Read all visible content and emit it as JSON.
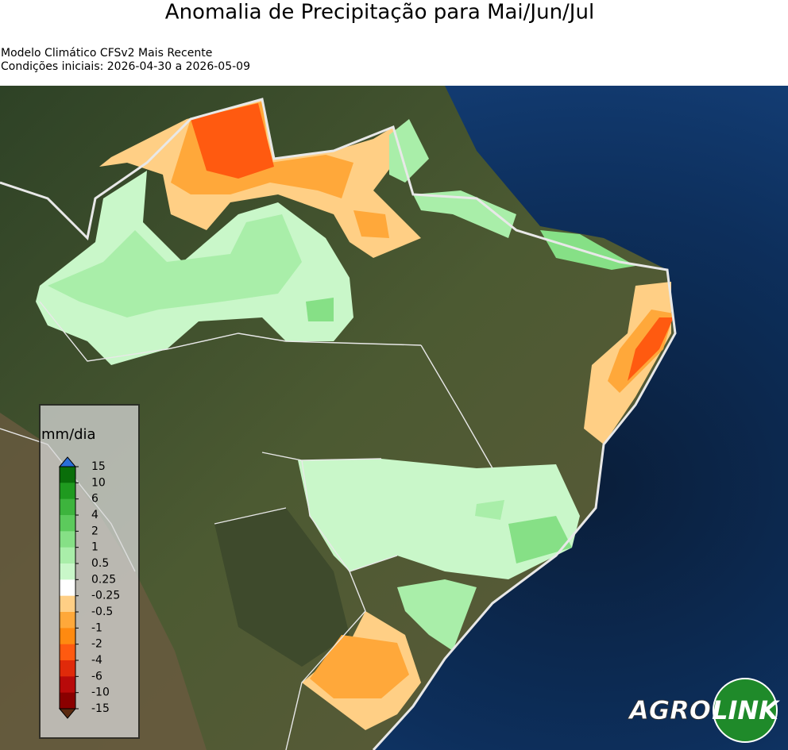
{
  "header": {
    "title": "Anomalia de Precipitação para Mai/Jun/Jul",
    "subtitle_lines": [
      "Modelo Climático CFSv2 Mais Recente",
      "Condições iniciais: 2026-04-30 a 2026-05-09"
    ]
  },
  "legend": {
    "unit": "mm/dia",
    "ticks": [
      "15",
      "10",
      "6",
      "4",
      "2",
      "1",
      "0.5",
      "0.25",
      "-0.25",
      "-0.5",
      "-1",
      "-2",
      "-4",
      "-6",
      "-10",
      "-15"
    ],
    "colors": [
      "#0a6e0a",
      "#1f9a1f",
      "#3db43d",
      "#5cca5c",
      "#86e086",
      "#a9eea9",
      "#c9f7c9",
      "#ffffff",
      "#ffcf85",
      "#ffa83a",
      "#ff8a10",
      "#ff5a10",
      "#e02a0a",
      "#b80a0a",
      "#8a0000"
    ],
    "over_color": "#2a6ed8",
    "under_color": "#5a2a10"
  },
  "logo": {
    "left": "AGRO",
    "right": "LINK"
  }
}
